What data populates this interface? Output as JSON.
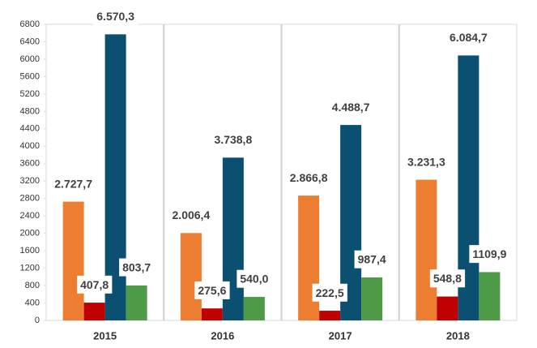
{
  "chart_data": {
    "type": "bar",
    "categories": [
      "2015",
      "2016",
      "2017",
      "2018"
    ],
    "series": [
      {
        "color": "#ed7d31",
        "values": [
          2727.7,
          2006.4,
          2866.8,
          3231.3
        ],
        "value_labels": [
          "2.727,7",
          "2.006,4",
          "2.866,8",
          "3.231,3"
        ]
      },
      {
        "color": "#c00000",
        "values": [
          407.8,
          275.6,
          222.5,
          548.8
        ],
        "value_labels": [
          "407,8",
          "275,6",
          "222,5",
          "548,8"
        ]
      },
      {
        "color": "#0b5071",
        "values": [
          6570.3,
          3738.8,
          4488.7,
          6084.7
        ],
        "value_labels": [
          "6.570,3",
          "3.738,8",
          "4.488,7",
          "6.084,7"
        ]
      },
      {
        "color": "#4e9a47",
        "values": [
          803.7,
          540.0,
          987.4,
          1109.9
        ],
        "value_labels": [
          "803,7",
          "540,0",
          "987,4",
          "1109,9"
        ]
      }
    ],
    "ylim": [
      0,
      6800
    ],
    "yticks": [
      0,
      400,
      800,
      1200,
      1600,
      2000,
      2400,
      2800,
      3200,
      3600,
      4000,
      4400,
      4800,
      5200,
      5600,
      6000,
      6400,
      6800
    ]
  }
}
